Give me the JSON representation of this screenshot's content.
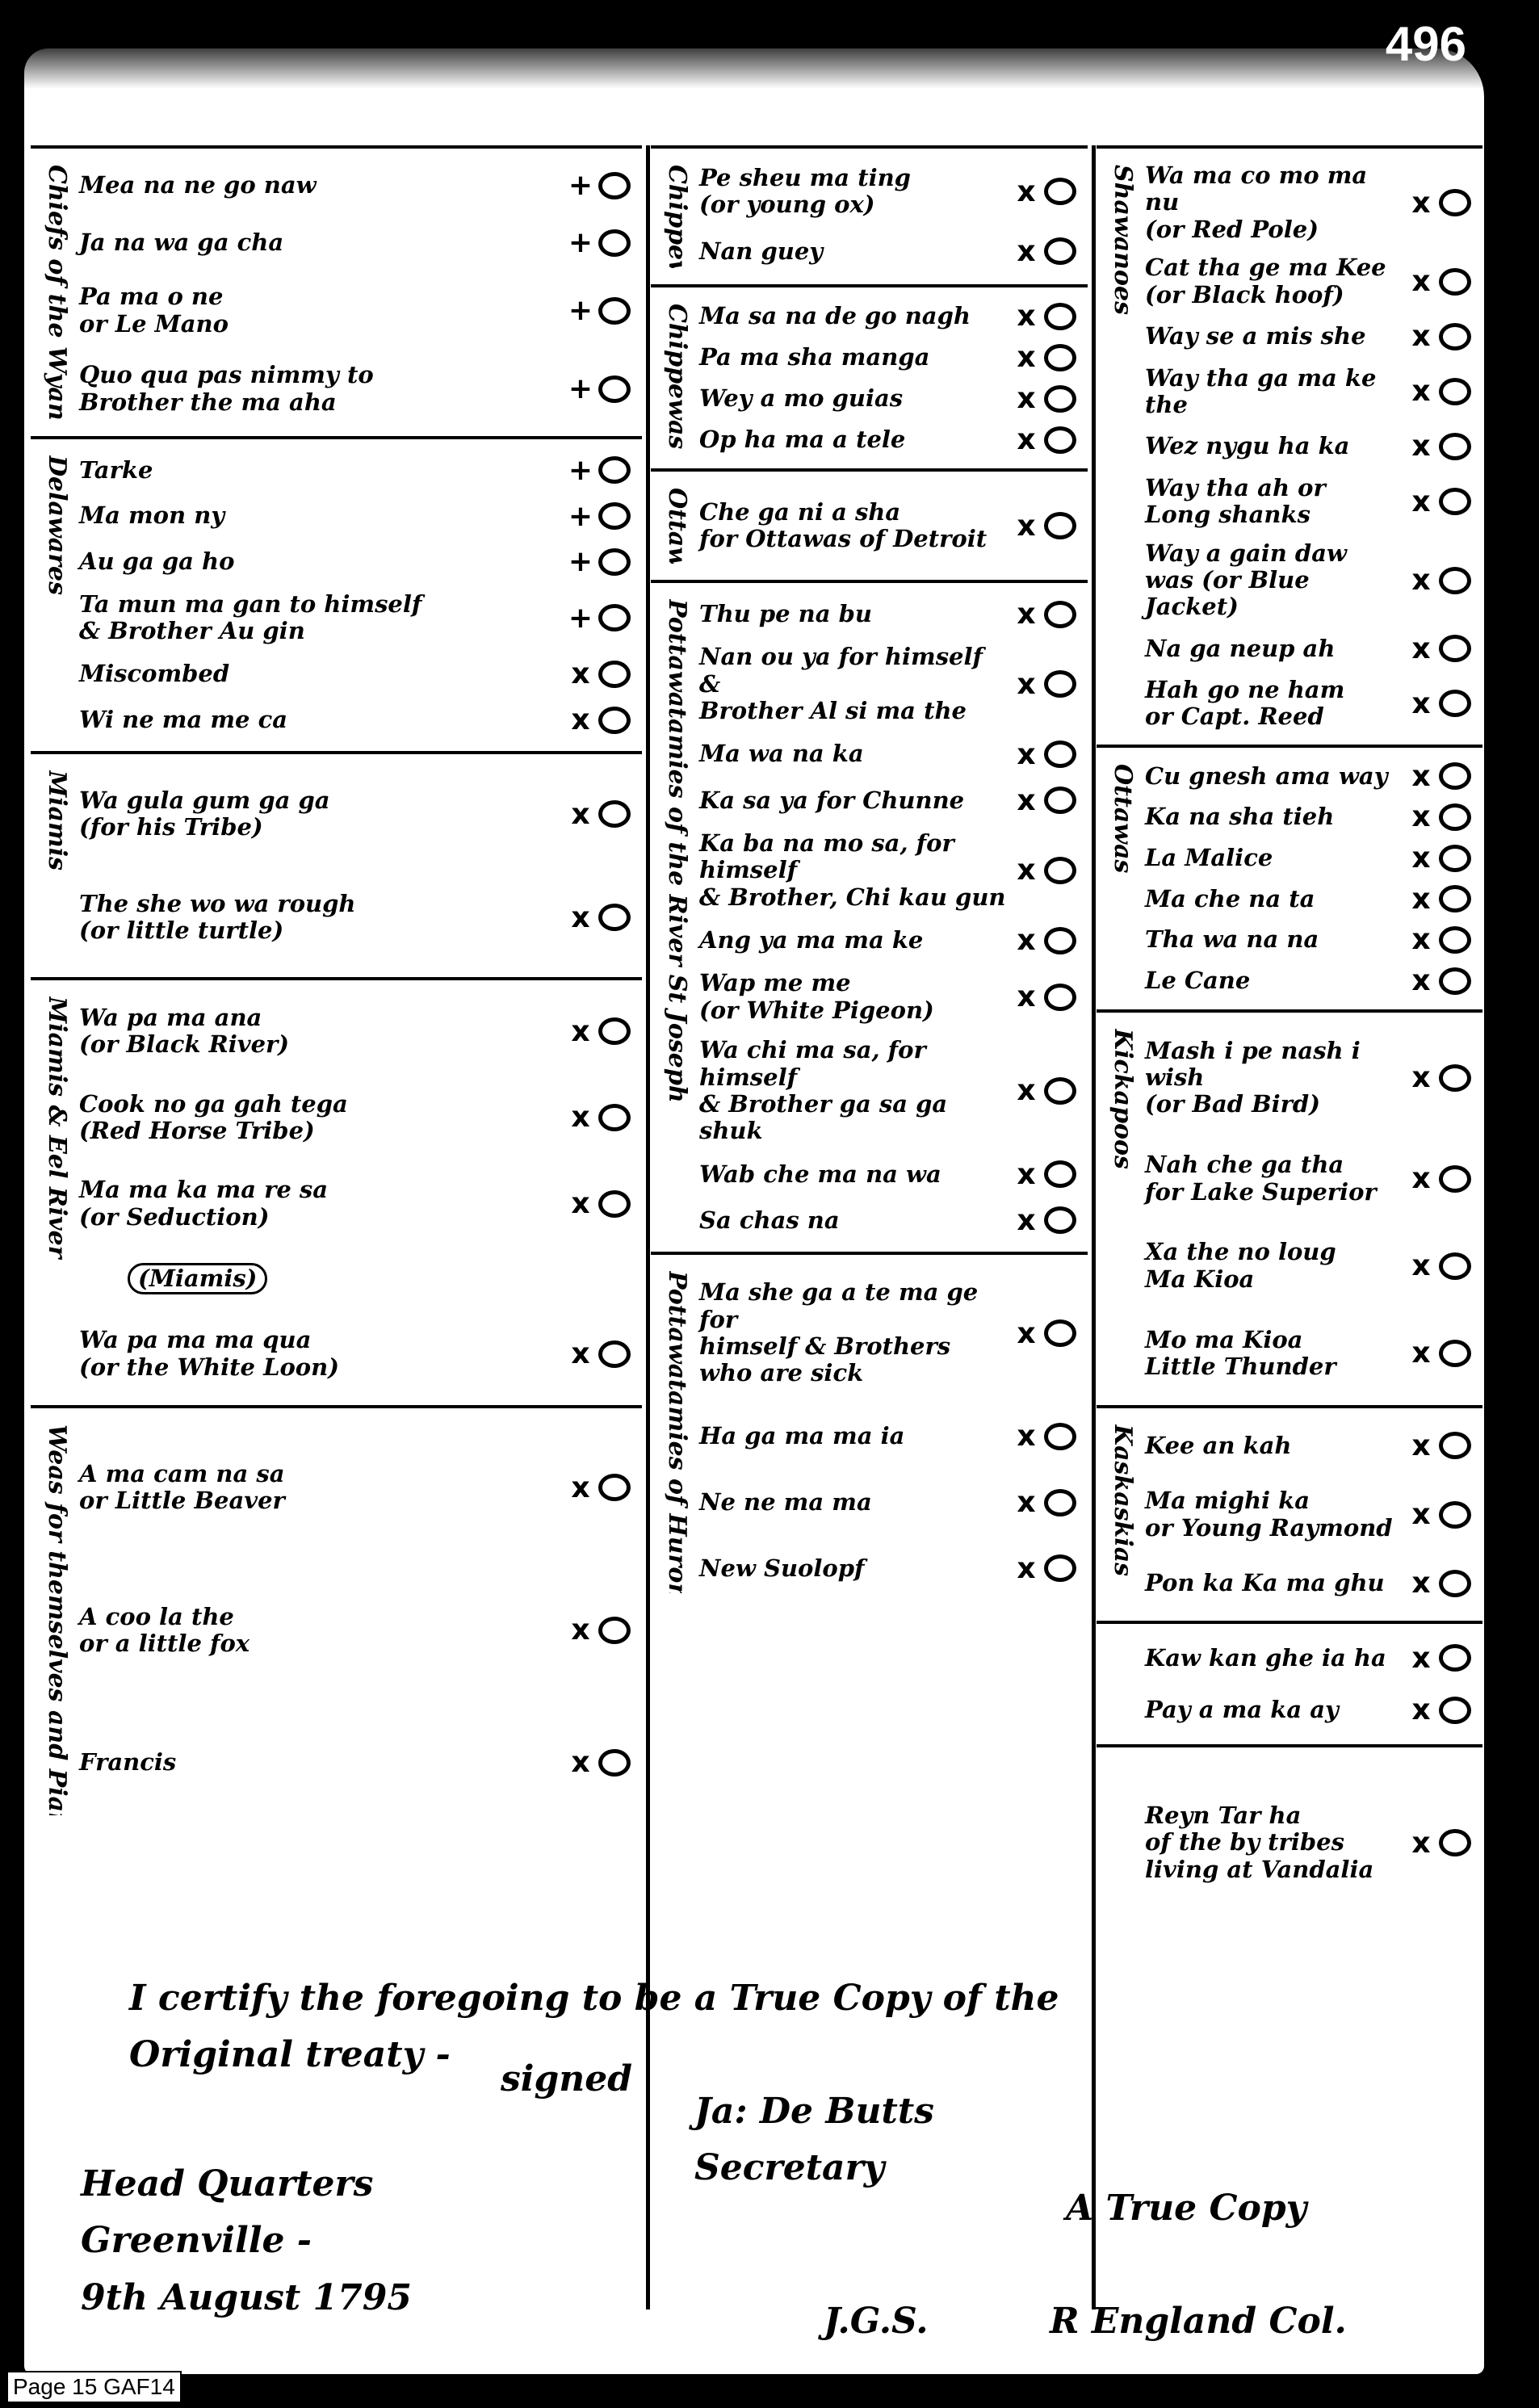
{
  "page_number": "496",
  "columns": [
    [
      {
        "group": "Chiefs of the Wyandots",
        "entries": [
          {
            "name": "Mea na ne go naw",
            "mark": "+"
          },
          {
            "name": "Ja na wa ga cha",
            "mark": "+"
          },
          {
            "name": "Pa ma o ne\nor Le Mano",
            "mark": "+"
          },
          {
            "name": "Quo qua pas nimmy to\nBrother the ma aha",
            "mark": "+"
          }
        ]
      },
      {
        "group": "Delawares",
        "entries": [
          {
            "name": "Tarke",
            "mark": "+"
          },
          {
            "name": "Ma mon ny",
            "mark": "+"
          },
          {
            "name": "Au ga ga ho",
            "mark": "+"
          },
          {
            "name": "Ta mun ma gan to himself\n& Brother Au gin",
            "mark": "+"
          },
          {
            "name": "Miscombed",
            "mark": "x"
          },
          {
            "name": "Wi ne ma me ca",
            "mark": "x"
          }
        ]
      },
      {
        "group": "Miamis",
        "entries": [
          {
            "name": "Wa gula gum ga ga\n(for his Tribe)",
            "mark": "x"
          },
          {
            "name": "The she wo wa rough\n(or little turtle)",
            "mark": "x"
          }
        ]
      },
      {
        "group": "Miamis & Eel River",
        "entries": [
          {
            "name": "Wa pa ma ana\n(or Black River)",
            "mark": "x"
          },
          {
            "name": "Cook no ga gah tega\n(Red Horse Tribe)",
            "mark": "x"
          },
          {
            "name": "Ma ma ka ma re sa\n(or Seduction)",
            "mark": "x"
          },
          {
            "name": "(Miamis)",
            "mark": ""
          },
          {
            "name": "Wa pa ma ma qua\n(or the White Loon)",
            "mark": "x"
          }
        ]
      },
      {
        "group": "Weas for themselves and Piankeshaws",
        "entries": [
          {
            "name": "A ma cam na sa\nor Little Beaver",
            "mark": "x"
          },
          {
            "name": "A coo la the\nor a little fox",
            "mark": "x"
          },
          {
            "name": "Francis",
            "mark": "x"
          }
        ]
      }
    ],
    [
      {
        "group": "Chippewas",
        "entries": [
          {
            "name": "Pe sheu ma ting\n(or young ox)",
            "mark": "x"
          },
          {
            "name": "Nan guey",
            "mark": "x"
          }
        ]
      },
      {
        "group": "Chippewas",
        "entries": [
          {
            "name": "Ma sa na de go nagh",
            "mark": "x"
          },
          {
            "name": "Pa ma sha manga",
            "mark": "x"
          },
          {
            "name": "Wey a mo guias",
            "mark": "x"
          },
          {
            "name": "Op ha ma a tele",
            "mark": "x"
          }
        ]
      },
      {
        "group": "Ottawas",
        "entries": [
          {
            "name": "Che ga ni a sha\nfor Ottawas of Detroit",
            "mark": "x"
          }
        ]
      },
      {
        "group": "Pottawatamies of the River St Joseph",
        "entries": [
          {
            "name": "Thu pe na bu",
            "mark": "x"
          },
          {
            "name": "Nan ou ya for himself &\nBrother Al si ma the",
            "mark": "x"
          },
          {
            "name": "Ma wa na ka",
            "mark": "x"
          },
          {
            "name": "Ka sa ya for Chunne",
            "mark": "x"
          },
          {
            "name": "Ka ba na mo sa, for himself\n& Brother, Chi kau gun",
            "mark": "x"
          },
          {
            "name": "Ang ya ma ma ke",
            "mark": "x"
          },
          {
            "name": "Wap me me\n(or White Pigeon)",
            "mark": "x"
          },
          {
            "name": "Wa chi ma sa, for himself\n& Brother ga sa ga shuk",
            "mark": "x"
          },
          {
            "name": "Wab che ma na wa",
            "mark": "x"
          },
          {
            "name": "Sa chas na",
            "mark": "x"
          }
        ]
      },
      {
        "group": "Pottawatamies of Huron",
        "entries": [
          {
            "name": "Ma she ga a te ma ge for\nhimself & Brothers\nwho are sick",
            "mark": "x"
          },
          {
            "name": "Ha ga ma ma ia",
            "mark": "x"
          },
          {
            "name": "Ne ne ma ma",
            "mark": "x"
          },
          {
            "name": "New Suolopf",
            "mark": "x"
          }
        ]
      }
    ],
    [
      {
        "group": "Shawanoes",
        "entries": [
          {
            "name": "Wa ma co mo ma nu\n(or Red Pole)",
            "mark": "x"
          },
          {
            "name": "Cat tha ge ma Kee\n(or Black hoof)",
            "mark": "x"
          },
          {
            "name": "Way se a mis she",
            "mark": "x"
          },
          {
            "name": "Way tha ga ma ke the",
            "mark": "x"
          },
          {
            "name": "Wez nygu ha ka",
            "mark": "x"
          },
          {
            "name": "Way tha ah or\nLong shanks",
            "mark": "x"
          },
          {
            "name": "Way a gain daw\nwas (or Blue Jacket)",
            "mark": "x"
          },
          {
            "name": "Na ga neup ah",
            "mark": "x"
          },
          {
            "name": "Hah go ne ham\nor Capt. Reed",
            "mark": "x"
          }
        ]
      },
      {
        "group": "Ottawas",
        "entries": [
          {
            "name": "Cu gnesh ama way",
            "mark": "x"
          },
          {
            "name": "Ka na sha tieh",
            "mark": "x"
          },
          {
            "name": "La Malice",
            "mark": "x"
          },
          {
            "name": "Ma che na ta",
            "mark": "x"
          },
          {
            "name": "Tha wa na na",
            "mark": "x"
          },
          {
            "name": "Le Cane",
            "mark": "x"
          }
        ]
      },
      {
        "group": "Kickapoos",
        "entries": [
          {
            "name": "Mash i pe nash i wish\n(or Bad Bird)",
            "mark": "x"
          },
          {
            "name": "Nah che ga tha\nfor Lake Superior",
            "mark": "x"
          },
          {
            "name": "Xa the no loug\nMa Kioa",
            "mark": "x"
          },
          {
            "name": "Mo ma Kioa\nLittle Thunder",
            "mark": "x"
          }
        ]
      },
      {
        "group": "Kaskaskias",
        "entries": [
          {
            "name": "Kee an kah",
            "mark": "x"
          },
          {
            "name": "Ma mighi ka\nor Young Raymond",
            "mark": "x"
          },
          {
            "name": "Pon ka Ka ma ghu",
            "mark": "x"
          }
        ]
      },
      {
        "group": "",
        "entries": [
          {
            "name": "Kaw kan ghe ia ha",
            "mark": "x"
          },
          {
            "name": "Pay a ma ka ay",
            "mark": "x"
          }
        ]
      },
      {
        "group": "",
        "entries": [
          {
            "name": "Reyn Tar ha\nof the by tribes\nliving at Vandalia",
            "mark": "x"
          }
        ]
      }
    ]
  ],
  "footer": {
    "certify": "I certify the foregoing to be a True Copy of the\nOriginal treaty -",
    "signed": "signed",
    "secretary": "Ja: De Butts\nSecretary",
    "place": "Head Quarters\nGreenville -\n9th August 1795",
    "initials": "J.G.S.",
    "true_copy": "A True Copy",
    "signature": "R England Col."
  },
  "image_label": "Page 15  GAF14"
}
